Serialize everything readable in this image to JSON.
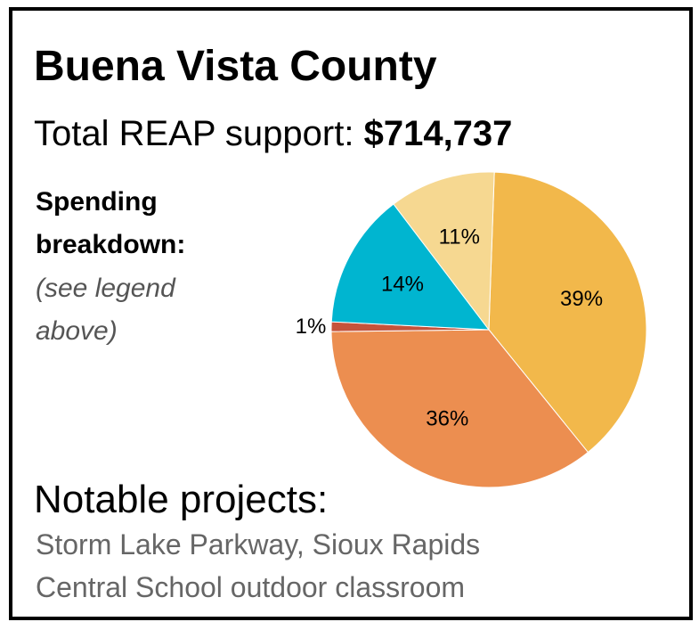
{
  "chart_data": {
    "type": "pie",
    "title": "Buena Vista County",
    "subtitle_label": "Total REAP support:",
    "total": "$714,737",
    "breakdown_title": [
      "Spending",
      "breakdown:"
    ],
    "breakdown_note": [
      "(see legend",
      "above)"
    ],
    "values": [
      39,
      36,
      1,
      14,
      11
    ],
    "value_labels": [
      "39%",
      "36%",
      "1%",
      "14%",
      "11%"
    ],
    "colors": [
      "#f2b84b",
      "#ec8e50",
      "#c5533a",
      "#00b5d0",
      "#f6d891"
    ],
    "projects_title": "Notable projects:",
    "projects": [
      "Storm Lake Parkway, Sioux Rapids",
      "Central School outdoor classroom"
    ]
  }
}
